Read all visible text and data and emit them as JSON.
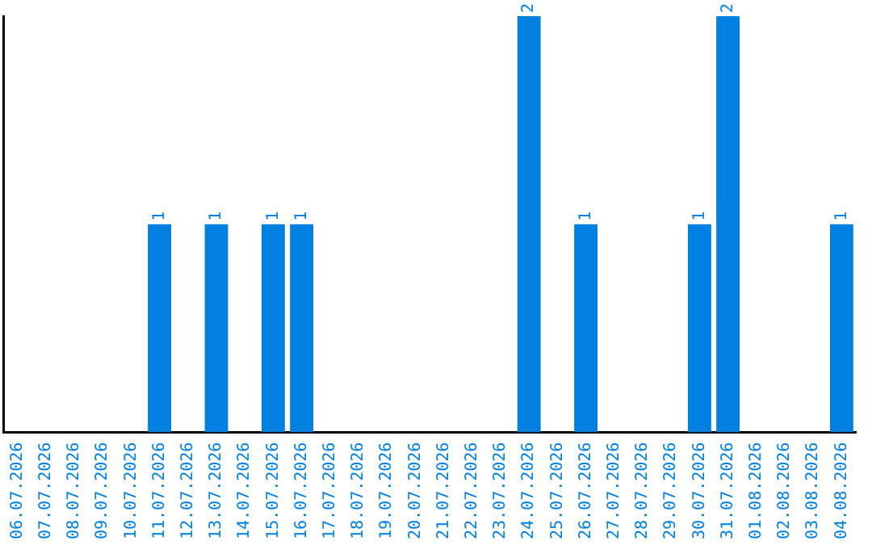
{
  "chart_data": {
    "type": "bar",
    "categories": [
      "06.07.2026",
      "07.07.2026",
      "08.07.2026",
      "09.07.2026",
      "10.07.2026",
      "11.07.2026",
      "12.07.2026",
      "13.07.2026",
      "14.07.2026",
      "15.07.2026",
      "16.07.2026",
      "17.07.2026",
      "18.07.2026",
      "19.07.2026",
      "20.07.2026",
      "21.07.2026",
      "22.07.2026",
      "23.07.2026",
      "24.07.2026",
      "25.07.2026",
      "26.07.2026",
      "27.07.2026",
      "28.07.2026",
      "29.07.2026",
      "30.07.2026",
      "31.07.2026",
      "01.08.2026",
      "02.08.2026",
      "03.08.2026",
      "04.08.2026"
    ],
    "values": [
      0,
      0,
      0,
      0,
      0,
      1,
      0,
      1,
      0,
      1,
      1,
      0,
      0,
      0,
      0,
      0,
      0,
      0,
      2,
      0,
      1,
      0,
      0,
      0,
      1,
      2,
      0,
      0,
      0,
      1
    ],
    "value_labels": [
      null,
      null,
      null,
      null,
      null,
      "1",
      null,
      "1",
      null,
      "1",
      "1",
      null,
      null,
      null,
      null,
      null,
      null,
      null,
      "2",
      null,
      "1",
      null,
      null,
      null,
      "1",
      "2",
      null,
      null,
      null,
      "1"
    ],
    "color": "#0080e0",
    "ylim": [
      0,
      2
    ],
    "tick_labels": "x",
    "grid": false,
    "legend": false
  }
}
